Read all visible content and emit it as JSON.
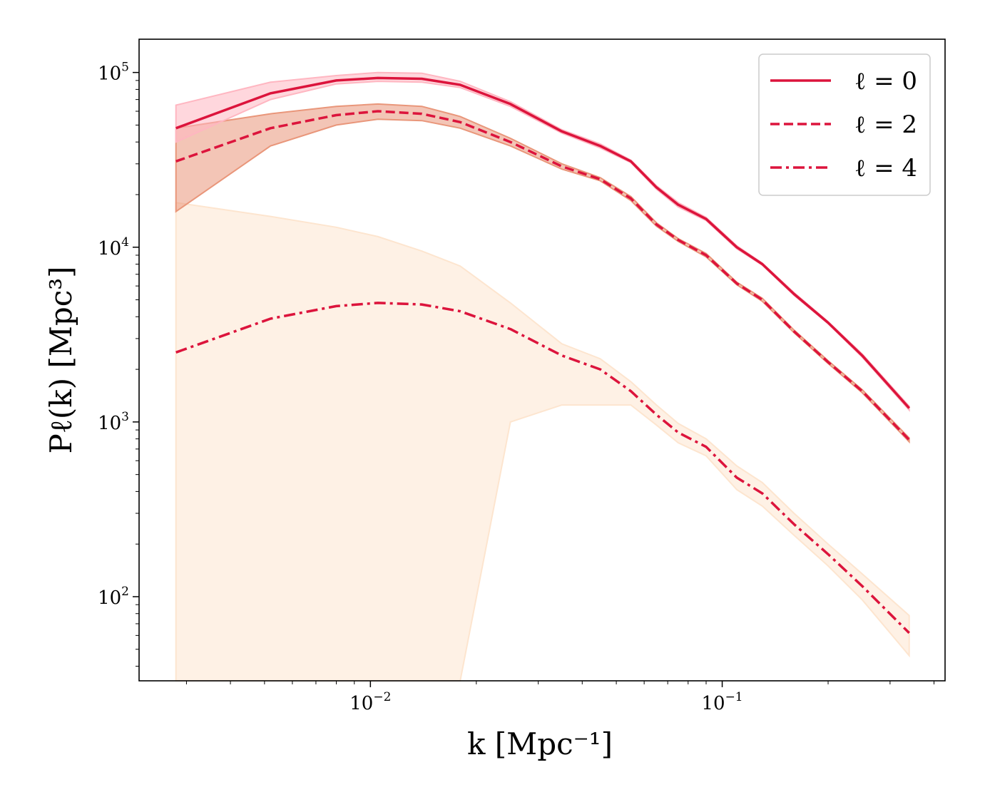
{
  "chart_data": {
    "type": "line",
    "xscale": "log",
    "yscale": "log",
    "xlim": [
      0.0022,
      0.43
    ],
    "ylim": [
      33,
      155000
    ],
    "xlabel": "k [Mpc⁻¹]",
    "ylabel": "Pℓ(k) [Mpc³]",
    "x_ticks": [
      {
        "value": 0.01,
        "base": "10",
        "exp": "−2"
      },
      {
        "value": 0.1,
        "base": "10",
        "exp": "−1"
      }
    ],
    "y_ticks": [
      {
        "value": 100,
        "base": "10",
        "exp": "2"
      },
      {
        "value": 1000,
        "base": "10",
        "exp": "3"
      },
      {
        "value": 10000,
        "base": "10",
        "exp": "4"
      },
      {
        "value": 100000,
        "base": "10",
        "exp": "5"
      }
    ],
    "legend_position": "top-right",
    "grid": false,
    "line_color": "#dc143c",
    "series": [
      {
        "name": "ℓ = 0",
        "style": "solid",
        "x": [
          0.0028,
          0.0052,
          0.008,
          0.0105,
          0.014,
          0.018,
          0.025,
          0.035,
          0.045,
          0.055,
          0.065,
          0.075,
          0.09,
          0.11,
          0.13,
          0.16,
          0.2,
          0.25,
          0.34
        ],
        "y": [
          48000,
          76000,
          90000,
          93000,
          92000,
          85000,
          66000,
          46000,
          38000,
          31000,
          22000,
          17500,
          14500,
          10000,
          8000,
          5400,
          3700,
          2400,
          1200
        ],
        "band_upper": [
          65000,
          88000,
          96000,
          100000,
          99000,
          89000,
          68000,
          47000,
          39000,
          31500,
          22500,
          18000,
          14800,
          10200,
          8100,
          5500,
          3750,
          2450,
          1230
        ],
        "band_lower": [
          40000,
          70000,
          86000,
          89000,
          88000,
          82000,
          64000,
          45000,
          37000,
          30500,
          21500,
          17000,
          14200,
          9800,
          7900,
          5300,
          3650,
          2350,
          1170
        ],
        "band_color": "#ffb6c1"
      },
      {
        "name": "ℓ = 2",
        "style": "dashed",
        "x": [
          0.0028,
          0.0052,
          0.008,
          0.0105,
          0.014,
          0.018,
          0.025,
          0.035,
          0.045,
          0.055,
          0.065,
          0.075,
          0.09,
          0.11,
          0.13,
          0.16,
          0.2,
          0.25,
          0.34
        ],
        "y": [
          31000,
          48000,
          57000,
          60000,
          58000,
          52000,
          40000,
          29000,
          24500,
          19000,
          13500,
          11000,
          9000,
          6200,
          5000,
          3300,
          2200,
          1500,
          790
        ],
        "band_upper": [
          48000,
          58000,
          64000,
          66000,
          64000,
          56000,
          42000,
          30000,
          25000,
          19500,
          13800,
          11200,
          9200,
          6300,
          5100,
          3360,
          2240,
          1530,
          810
        ],
        "band_lower": [
          16000,
          38000,
          50000,
          54000,
          53000,
          48000,
          38000,
          28000,
          24000,
          18500,
          13200,
          10800,
          8800,
          6100,
          4900,
          3240,
          2160,
          1470,
          770
        ],
        "band_color": "#e9967a"
      },
      {
        "name": "ℓ = 4",
        "style": "dashdot",
        "x": [
          0.0028,
          0.0052,
          0.008,
          0.0105,
          0.014,
          0.018,
          0.025,
          0.035,
          0.045,
          0.055,
          0.065,
          0.075,
          0.09,
          0.11,
          0.13,
          0.16,
          0.2,
          0.25,
          0.34
        ],
        "y": [
          2500,
          3900,
          4600,
          4800,
          4700,
          4300,
          3400,
          2400,
          2000,
          1500,
          1100,
          870,
          720,
          480,
          390,
          260,
          175,
          115,
          62
        ],
        "band_upper": [
          18000,
          15000,
          13000,
          11500,
          9500,
          7800,
          4800,
          2800,
          2300,
          1700,
          1250,
          980,
          800,
          560,
          450,
          300,
          200,
          135,
          78
        ],
        "band_lower": [
          33,
          33,
          33,
          33,
          33,
          33,
          1000,
          1250,
          1250,
          1250,
          960,
          760,
          640,
          410,
          330,
          225,
          150,
          96,
          46
        ],
        "band_color": "#fde5cf"
      }
    ]
  }
}
